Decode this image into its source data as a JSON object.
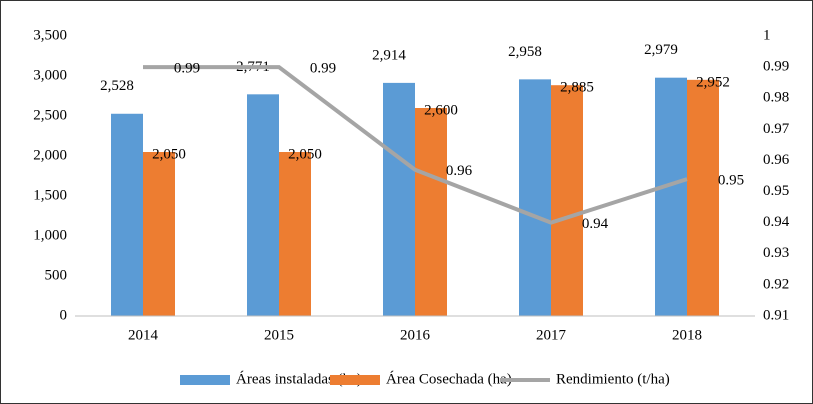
{
  "chart_data": {
    "type": "bar_line",
    "categories": [
      "2014",
      "2015",
      "2016",
      "2017",
      "2018"
    ],
    "series": [
      {
        "name": "Áreas instaladas (ha)",
        "color": "#5b9bd5",
        "values": [
          2528,
          2771,
          2914,
          2958,
          2979
        ],
        "value_labels": [
          "2,528",
          "2,771",
          "2,914",
          "2,958",
          "2,979"
        ]
      },
      {
        "name": "Área Cosechada (ha)",
        "color": "#ed7d31",
        "values": [
          2050,
          2050,
          2600,
          2885,
          2952
        ],
        "value_labels": [
          "2,050",
          "2,050",
          "2,600",
          "2,885",
          "2,952"
        ]
      },
      {
        "name": "Rendimiento (t/ha)",
        "color": "#a5a5a5",
        "axis": "y2",
        "values": [
          0.99,
          0.99,
          0.957,
          0.94,
          0.954
        ],
        "value_labels": [
          "0.99",
          "0.99",
          "0.96",
          "0.94",
          "0.95"
        ]
      }
    ],
    "ylim": [
      0,
      3500
    ],
    "yticks": [
      0,
      500,
      {
        "value": 1000,
        "label": "1,000"
      },
      {
        "value": 1500,
        "label": "1,500"
      },
      {
        "value": 2000,
        "label": "2,000"
      },
      {
        "value": 2500,
        "label": "2,500"
      },
      {
        "value": 3000,
        "label": "3,000"
      },
      {
        "value": 3500,
        "label": "3,500"
      }
    ],
    "y2lim": [
      0.91,
      1
    ],
    "y2ticks": [
      0.91,
      0.92,
      0.93,
      0.94,
      0.95,
      0.96,
      0.97,
      0.98,
      0.99,
      1
    ],
    "grid": false,
    "legend": "bottom"
  }
}
